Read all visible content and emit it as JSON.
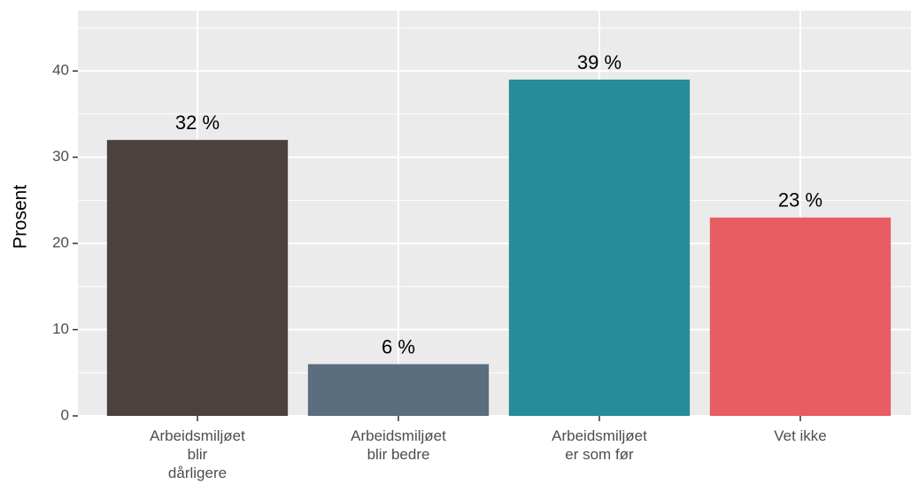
{
  "chart_data": {
    "type": "bar",
    "y_label": "Prosent",
    "categories": [
      "Arbeidsmiljøet\nblir\ndårligere",
      "Arbeidsmiljøet\nblir bedre",
      "Arbeidsmiljøet\ner som før",
      "Vet ikke"
    ],
    "values": [
      32,
      6,
      39,
      23
    ],
    "value_labels": [
      "32 %",
      "6 %",
      "39 %",
      "23 %"
    ],
    "colors": [
      "#4b4240",
      "#5b6e7f",
      "#268c99",
      "#e85c64"
    ],
    "ylim": [
      0,
      47
    ],
    "yticks": [
      0,
      10,
      20,
      30,
      40
    ],
    "minor_yticks": [
      5,
      15,
      25,
      35,
      45
    ],
    "grid": true
  }
}
